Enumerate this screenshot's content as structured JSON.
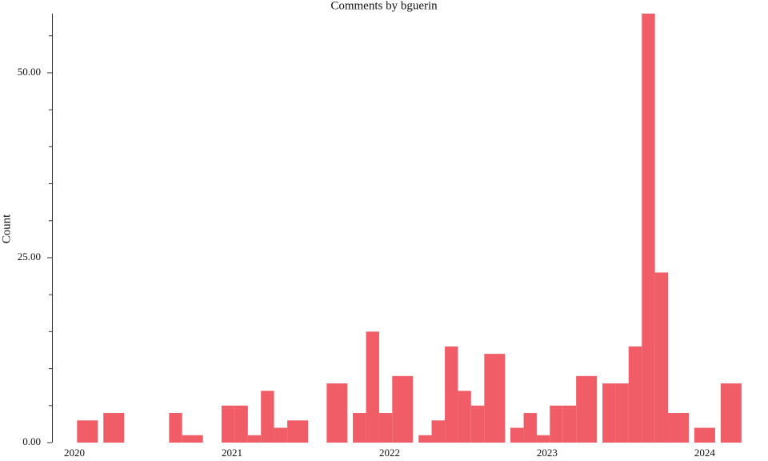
{
  "chart_data": {
    "type": "bar",
    "title": "Comments by bguerin",
    "y_label": "Count",
    "color": "#f05d66",
    "x": [
      2020.083,
      2020.25,
      2020.667,
      2020.75,
      2021.0,
      2021.083,
      2021.167,
      2021.25,
      2021.333,
      2021.417,
      2021.667,
      2021.833,
      2021.917,
      2022.0,
      2022.083,
      2022.25,
      2022.333,
      2022.417,
      2022.5,
      2022.583,
      2022.667,
      2022.833,
      2022.917,
      2023.0,
      2023.083,
      2023.167,
      2023.25,
      2023.417,
      2023.5,
      2023.583,
      2023.667,
      2023.75,
      2023.833,
      2024.0,
      2024.167
    ],
    "values": [
      3,
      4,
      4,
      1,
      5,
      5,
      1,
      7,
      2,
      3,
      8,
      4,
      15,
      4,
      9,
      1,
      3,
      13,
      7,
      5,
      12,
      2,
      4,
      1,
      5,
      5,
      9,
      8,
      8,
      13,
      58,
      23,
      4,
      2,
      8
    ],
    "xlim": [
      2019.858,
      2024.3
    ],
    "xticks": [
      2020,
      2021,
      2022,
      2023,
      2024
    ],
    "ylim": [
      0,
      58
    ],
    "yticks": [
      {
        "value": 0,
        "label": "0.00"
      },
      {
        "value": 25,
        "label": "25.00"
      },
      {
        "value": 50,
        "label": "50.00"
      }
    ],
    "yminorticks": [
      5,
      10,
      15,
      20,
      30,
      35,
      40,
      45,
      55
    ]
  }
}
